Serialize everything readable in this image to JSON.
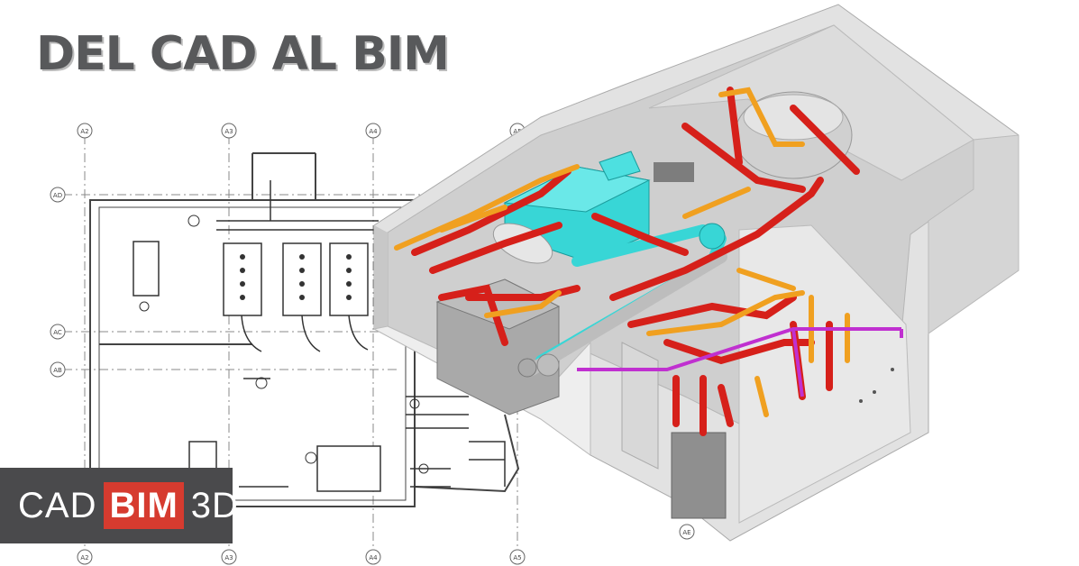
{
  "headline": "DEL CAD AL BIM",
  "logo": {
    "part1": "CAD",
    "part2": "BIM",
    "part3": "3D"
  },
  "grid_labels": {
    "top": [
      "A2",
      "A3",
      "A4",
      "A5"
    ],
    "left": [
      "AD",
      "AC",
      "AB"
    ],
    "bottom": [
      "A2",
      "A3",
      "A4",
      "A5"
    ],
    "right": [
      "AE"
    ]
  },
  "colors": {
    "headline": "#58595b",
    "logo_bg": "#4a4a4c",
    "logo_accent": "#d63b2f",
    "pipe_red": "#d6201a",
    "pipe_orange": "#f0a020",
    "duct_cyan": "#38d6d6",
    "pipe_magenta": "#c030d0"
  }
}
